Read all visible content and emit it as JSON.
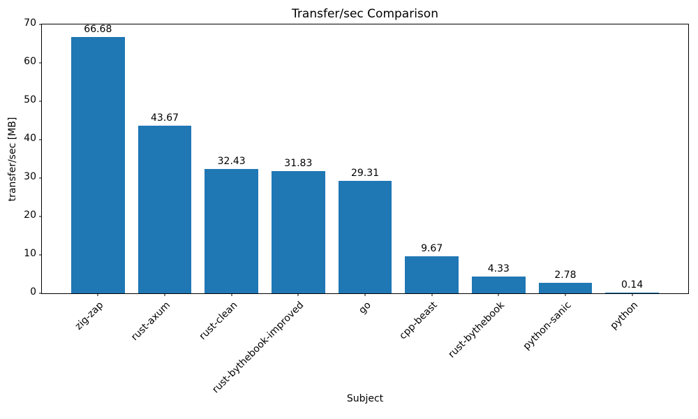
{
  "chart_data": {
    "type": "bar",
    "title": "Transfer/sec Comparison",
    "xlabel": "Subject",
    "ylabel": "transfer/sec [MB]",
    "categories": [
      "zig-zap",
      "rust-axum",
      "rust-clean",
      "rust-bythebook-improved",
      "go",
      "cpp-beast",
      "rust-bythebook",
      "python-sanic",
      "python"
    ],
    "values": [
      66.68,
      43.67,
      32.43,
      31.83,
      29.31,
      9.67,
      4.33,
      2.78,
      0.14
    ],
    "value_labels": [
      "66.68",
      "43.67",
      "32.43",
      "31.83",
      "29.31",
      "9.67",
      "4.33",
      "2.78",
      "0.14"
    ],
    "ylim": [
      0,
      70
    ],
    "yticks": [
      0,
      10,
      20,
      30,
      40,
      50,
      60,
      70
    ],
    "bar_color": "#1f77b4",
    "grid": false,
    "legend_position": "none"
  }
}
